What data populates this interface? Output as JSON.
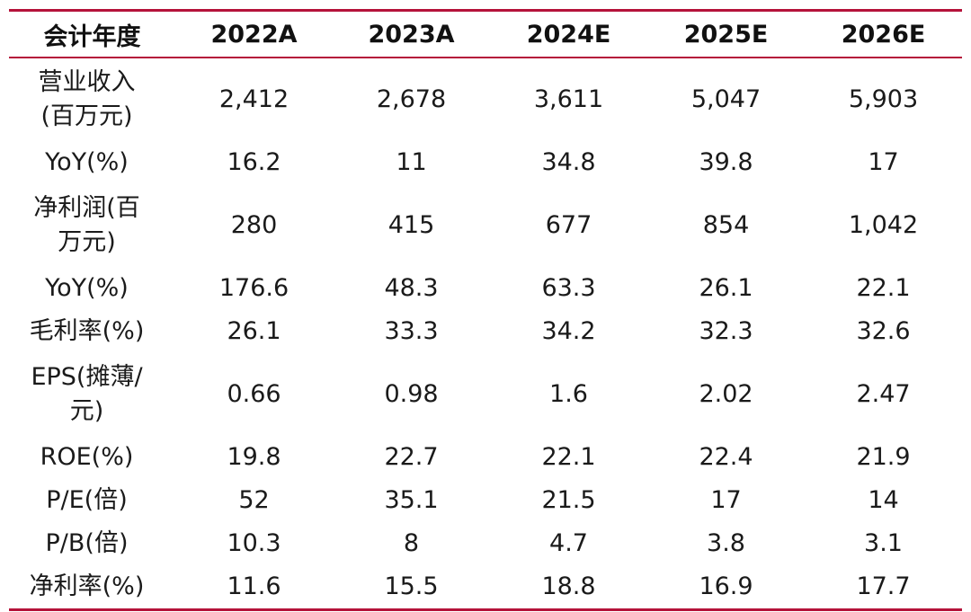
{
  "table": {
    "headers": [
      "会计年度",
      "2022A",
      "2023A",
      "2024E",
      "2025E",
      "2026E"
    ],
    "rows": [
      {
        "label_lines": [
          "营业收入",
          "(百万元)"
        ],
        "values": [
          "2,412",
          "2,678",
          "3,611",
          "5,047",
          "5,903"
        ]
      },
      {
        "label_lines": [
          "YoY(%)"
        ],
        "values": [
          "16.2",
          "11",
          "34.8",
          "39.8",
          "17"
        ]
      },
      {
        "label_lines": [
          "净利润(百",
          "万元)"
        ],
        "values": [
          "280",
          "415",
          "677",
          "854",
          "1,042"
        ]
      },
      {
        "label_lines": [
          "YoY(%)"
        ],
        "values": [
          "176.6",
          "48.3",
          "63.3",
          "26.1",
          "22.1"
        ]
      },
      {
        "label_lines": [
          "毛利率(%)"
        ],
        "values": [
          "26.1",
          "33.3",
          "34.2",
          "32.3",
          "32.6"
        ]
      },
      {
        "label_lines": [
          "EPS(摊薄/",
          "元)"
        ],
        "values": [
          "0.66",
          "0.98",
          "1.6",
          "2.02",
          "2.47"
        ]
      },
      {
        "label_lines": [
          "ROE(%)"
        ],
        "values": [
          "19.8",
          "22.7",
          "22.1",
          "22.4",
          "21.9"
        ]
      },
      {
        "label_lines": [
          "P/E(倍)"
        ],
        "values": [
          "52",
          "35.1",
          "21.5",
          "17",
          "14"
        ]
      },
      {
        "label_lines": [
          "P/B(倍)"
        ],
        "values": [
          "10.3",
          "8",
          "4.7",
          "3.8",
          "3.1"
        ]
      },
      {
        "label_lines": [
          "净利率(%)"
        ],
        "values": [
          "11.6",
          "15.5",
          "18.8",
          "16.9",
          "17.7"
        ]
      }
    ]
  },
  "colors": {
    "accent": "#b5123a"
  }
}
